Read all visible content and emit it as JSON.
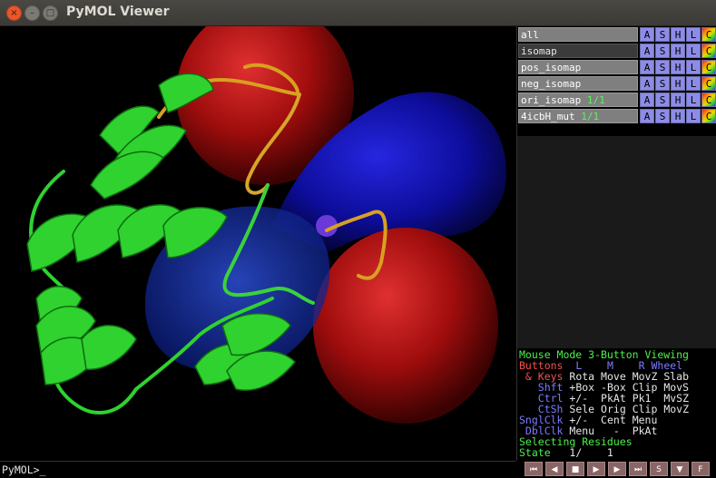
{
  "window": {
    "title": "PyMOL Viewer",
    "close_glyph": "×",
    "min_glyph": "–",
    "max_glyph": "□"
  },
  "objects": [
    {
      "name": "all",
      "state": "",
      "enabled": true
    },
    {
      "name": "isomap",
      "state": "",
      "enabled": false
    },
    {
      "name": "pos_isomap",
      "state": "",
      "enabled": true
    },
    {
      "name": "neg_isomap",
      "state": "",
      "enabled": true
    },
    {
      "name": "ori_isomap",
      "state": "1/1",
      "enabled": true
    },
    {
      "name": "4icbH_mut",
      "state": "1/1",
      "enabled": true
    }
  ],
  "object_buttons": {
    "a": "A",
    "s": "S",
    "h": "H",
    "l": "L",
    "c": "C"
  },
  "mouse_mode": {
    "title": "Mouse Mode 3-Button Viewing",
    "header": {
      "label": "Buttons",
      "l": "L",
      "m": "M",
      "r": "R",
      "wheel": "Wheel"
    },
    "rows": [
      {
        "mod": " & Keys",
        "l": "Rota",
        "m": "Move",
        "r": "MovZ",
        "w": "Slab"
      },
      {
        "mod": "   Shft",
        "l": "+Box",
        "m": "-Box",
        "r": "Clip",
        "w": "MovS"
      },
      {
        "mod": "   Ctrl",
        "l": "+/- ",
        "m": "PkAt",
        "r": "Pk1 ",
        "w": "MvSZ"
      },
      {
        "mod": "   CtSh",
        "l": "Sele",
        "m": "Orig",
        "r": "Clip",
        "w": "MovZ"
      },
      {
        "mod": "SnglClk",
        "l": "+/- ",
        "m": "Cent",
        "r": "Menu",
        "w": ""
      },
      {
        "mod": " DblClk",
        "l": "Menu",
        "m": "  - ",
        "r": "PkAt",
        "w": ""
      }
    ],
    "selecting": "Selecting Residues",
    "state_label": "State",
    "state_value": "   1/    1"
  },
  "command_prompt": "PyMOL>_",
  "playback": {
    "first": "⏮",
    "prev": "◀",
    "stop": "■",
    "play": "▶",
    "next": "▶",
    "last": "⏭",
    "scene": "S",
    "down": "▼",
    "full": "F"
  },
  "colors": {
    "protein": "#2fd22f",
    "positive": "#1a1ad0",
    "negative": "#c01010",
    "background": "#000000"
  },
  "icons": [
    "close-icon",
    "minimize-icon",
    "maximize-icon"
  ]
}
